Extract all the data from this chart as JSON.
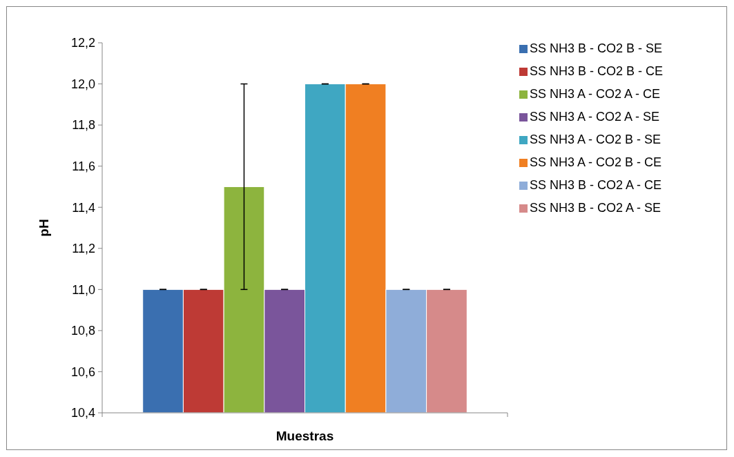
{
  "chart_data": {
    "type": "bar",
    "xlabel": "Muestras",
    "ylabel": "pH",
    "categories": [
      null
    ],
    "series": [
      {
        "name": "SS NH3 B - CO2 B - SE",
        "color": "#3a6fb0",
        "values": [
          11.0
        ],
        "errors": [
          0
        ]
      },
      {
        "name": "SS NH3 B - CO2 B - CE",
        "color": "#be3a35",
        "values": [
          11.0
        ],
        "errors": [
          0
        ]
      },
      {
        "name": "SS NH3 A - CO2 A - CE",
        "color": "#8db43e",
        "values": [
          11.5
        ],
        "errors": [
          0.5
        ]
      },
      {
        "name": "SS NH3 A - CO2 A - SE",
        "color": "#7a559b",
        "values": [
          11.0
        ],
        "errors": [
          0
        ]
      },
      {
        "name": "SS NH3 A - CO2 B - SE",
        "color": "#3fa7c2",
        "values": [
          12.0
        ],
        "errors": [
          0
        ]
      },
      {
        "name": "SS NH3 A - CO2 B - CE",
        "color": "#f07f22",
        "values": [
          12.0
        ],
        "errors": [
          0
        ]
      },
      {
        "name": "SS NH3 B - CO2 A - CE",
        "color": "#8fadd9",
        "values": [
          11.0
        ],
        "errors": [
          0
        ]
      },
      {
        "name": "SS NH3 B - CO2 A - SE",
        "color": "#d68a8a",
        "values": [
          11.0
        ],
        "errors": [
          0
        ]
      }
    ],
    "ylim": [
      10.4,
      12.2
    ],
    "yticks": [
      {
        "value": 10.4,
        "label": "10,4"
      },
      {
        "value": 10.6,
        "label": "10,6"
      },
      {
        "value": 10.8,
        "label": "10,8"
      },
      {
        "value": 11.0,
        "label": "11,0"
      },
      {
        "value": 11.2,
        "label": "11,2"
      },
      {
        "value": 11.4,
        "label": "11,4"
      },
      {
        "value": 11.6,
        "label": "11,6"
      },
      {
        "value": 11.8,
        "label": "11,8"
      },
      {
        "value": 12.0,
        "label": "12,0"
      },
      {
        "value": 12.2,
        "label": "12,2"
      }
    ],
    "legend": "right",
    "grid": false
  }
}
